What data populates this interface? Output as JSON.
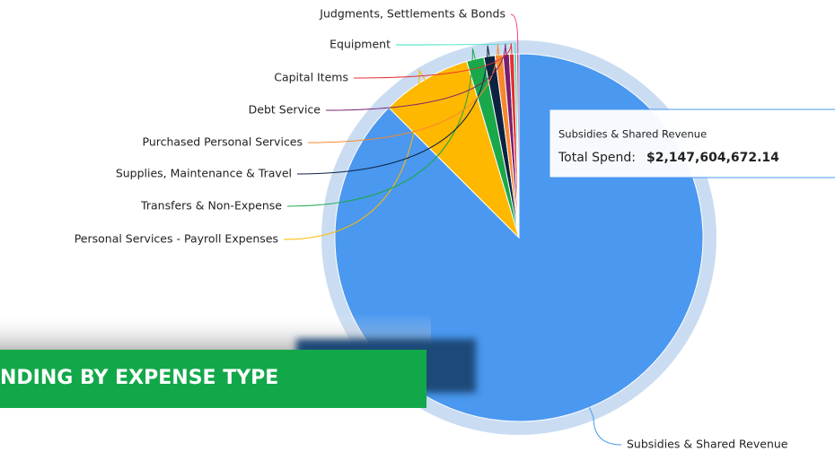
{
  "chart_data": {
    "type": "pie",
    "categories": [
      "Subsidies & Shared Revenue",
      "Personal Services - Payroll Expenses",
      "Transfers & Non-Expense",
      "Supplies, Maintenance & Travel",
      "Purchased Personal Services",
      "Debt Service",
      "Capital Items",
      "Equipment",
      "Judgments, Settlements & Bonds"
    ],
    "values": [
      2147604672.14,
      194300000,
      37500000,
      23900000,
      17000000,
      13600000,
      10200000,
      5500000,
      4800000
    ],
    "value_labels": [
      "$2,147,604,672.14",
      null,
      null,
      null,
      null,
      null,
      null,
      null,
      null
    ],
    "colors": [
      "#4a98ef",
      "#ffb800",
      "#1aa84a",
      "#0d2240",
      "#f7882f",
      "#7a1f6e",
      "#e8302f",
      "#30e0c0",
      "#f0407a"
    ],
    "tooltip": {
      "title": "Subsidies & Shared Revenue",
      "label": "Total Spend:"
    },
    "banner": "NDING BY EXPENSE TYPE"
  }
}
